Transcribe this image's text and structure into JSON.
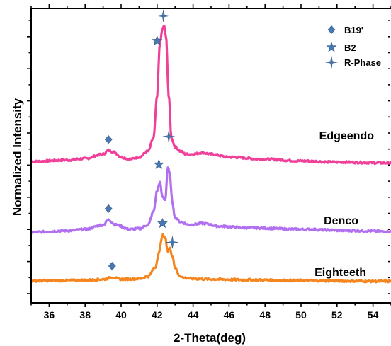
{
  "chart_data": {
    "type": "line",
    "xlabel": "2-Theta(deg)",
    "ylabel": "Normalized Intensity",
    "xlim": [
      35,
      55
    ],
    "ylim": [
      0,
      100
    ],
    "x_ticks": [
      36,
      38,
      40,
      42,
      44,
      46,
      48,
      50,
      52,
      54
    ],
    "y_tick_labels_shown": false,
    "grid": false,
    "legend": {
      "position": "top-right",
      "entries": [
        {
          "label": "B19'",
          "marker": "diamond-icon"
        },
        {
          "label": "B2",
          "marker": "star-icon"
        },
        {
          "label": "R-Phase",
          "marker": "four-point-star-icon"
        }
      ]
    },
    "marker_color": "#4a78b0",
    "series": [
      {
        "name": "Edgeendo",
        "color": "#f0409a",
        "x": [
          35,
          37,
          38,
          39,
          39.3,
          39.6,
          40.0,
          40.5,
          41.0,
          41.5,
          41.8,
          42.0,
          42.15,
          42.3,
          42.4,
          42.5,
          42.65,
          42.8,
          43.0,
          43.3,
          43.6,
          44.0,
          44.5,
          45.0,
          46,
          48,
          50,
          52,
          55
        ],
        "y": [
          48,
          48.5,
          49,
          50.5,
          51.8,
          51.2,
          49.5,
          48.8,
          49.5,
          51.5,
          56,
          70,
          88,
          93,
          94,
          90,
          70,
          56,
          53,
          51.5,
          50.5,
          50.5,
          51,
          50.5,
          49.5,
          48.8,
          48.2,
          47.8,
          47.5
        ]
      },
      {
        "name": "Denco",
        "color": "#b070f0",
        "x": [
          35,
          37,
          38,
          39,
          39.3,
          39.7,
          40.5,
          41.0,
          41.5,
          41.8,
          42.0,
          42.15,
          42.3,
          42.45,
          42.6,
          42.7,
          42.85,
          43.0,
          43.3,
          43.8,
          44.5,
          45.5,
          47,
          50,
          53,
          55
        ],
        "y": [
          24,
          24.5,
          25,
          26.5,
          28.2,
          26.5,
          25,
          25.2,
          26.5,
          31,
          38,
          41,
          36,
          35,
          46,
          44,
          34,
          29,
          27.5,
          26.5,
          27,
          26,
          25.5,
          25,
          24.5,
          24.2
        ]
      },
      {
        "name": "Eighteeth",
        "color": "#f5861f",
        "x": [
          35,
          37,
          38,
          39,
          39.5,
          40.0,
          41.0,
          41.5,
          41.9,
          42.1,
          42.3,
          42.45,
          42.6,
          42.7,
          42.85,
          43.0,
          43.2,
          43.5,
          44.0,
          45,
          47,
          50,
          53,
          55
        ],
        "y": [
          7.5,
          7.6,
          7.7,
          8,
          8.6,
          8,
          8.2,
          9,
          12,
          17,
          23,
          22,
          17.5,
          18.5,
          16,
          12,
          9.5,
          8.5,
          8.2,
          8,
          7.8,
          7.6,
          7.4,
          7.3
        ]
      }
    ],
    "annotations": [
      {
        "series": "Edgeendo",
        "marker": "diamond-icon",
        "x": 39.3,
        "y": 55.5
      },
      {
        "series": "Edgeendo",
        "marker": "star-icon",
        "x": 42.0,
        "y": 89
      },
      {
        "series": "Edgeendo",
        "marker": "four-point-star-icon",
        "x": 42.35,
        "y": 97.5
      },
      {
        "series": "Edgeendo",
        "marker": "four-point-star-icon",
        "x": 42.65,
        "y": 56.5
      },
      {
        "series": "Denco",
        "marker": "diamond-icon",
        "x": 39.3,
        "y": 32
      },
      {
        "series": "Denco",
        "marker": "star-icon",
        "x": 42.1,
        "y": 47
      },
      {
        "series": "Eighteeth",
        "marker": "diamond-icon",
        "x": 39.5,
        "y": 12.5
      },
      {
        "series": "Eighteeth",
        "marker": "star-icon",
        "x": 42.3,
        "y": 27
      },
      {
        "series": "Eighteeth",
        "marker": "four-point-star-icon",
        "x": 42.85,
        "y": 20.5
      }
    ]
  }
}
